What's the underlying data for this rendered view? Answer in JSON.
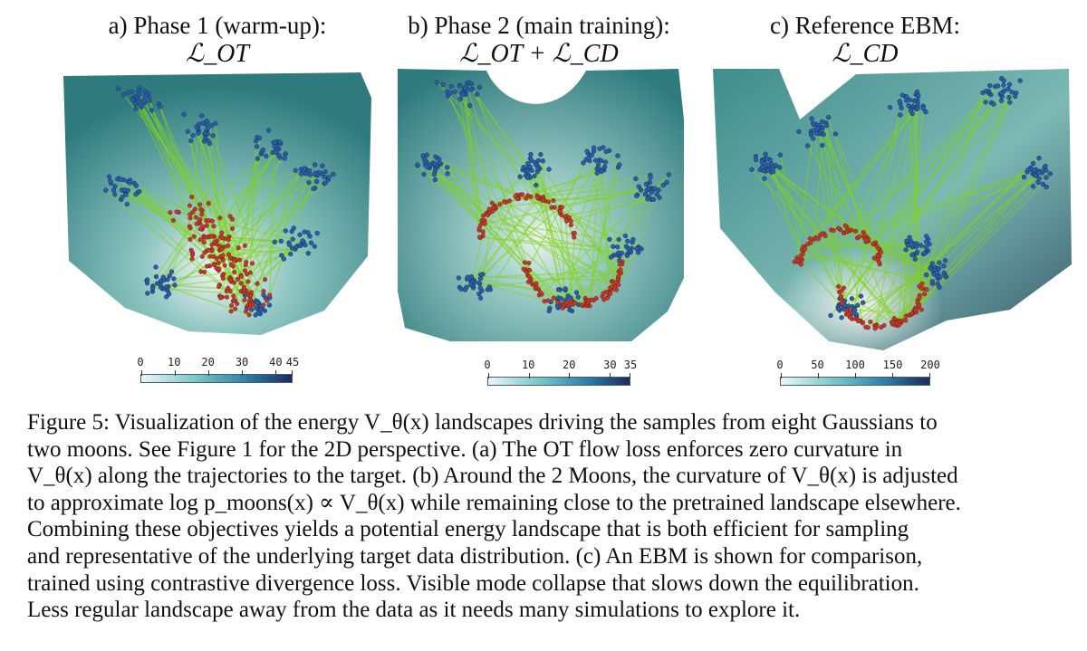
{
  "panels": [
    {
      "title": "a) Phase 1 (warm-up):",
      "formula": "ℒ_OT",
      "colorbar": {
        "ticks": [
          "0",
          "10",
          "20",
          "30",
          "40",
          "45"
        ],
        "fractions": [
          0,
          0.222,
          0.444,
          0.667,
          0.889,
          1
        ]
      }
    },
    {
      "title": "b) Phase 2 (main training):",
      "formula": "ℒ_OT + ℒ_CD",
      "colorbar": {
        "ticks": [
          "0",
          "10",
          "20",
          "30",
          "35"
        ],
        "fractions": [
          0,
          0.286,
          0.571,
          0.857,
          1
        ]
      }
    },
    {
      "title": "c) Reference EBM:",
      "formula": "ℒ_CD",
      "colorbar": {
        "ticks": [
          "0",
          "50",
          "100",
          "150",
          "200"
        ],
        "fractions": [
          0,
          0.25,
          0.5,
          0.75,
          1
        ]
      }
    }
  ],
  "caption": {
    "lines": [
      "Figure 5: Visualization of the energy V_θ(x) landscapes driving the samples from eight Gaussians to",
      "two moons. See Figure 1 for the 2D perspective. (a) The OT flow loss enforces zero curvature in",
      "V_θ(x) along the trajectories to the target. (b) Around the 2 Moons, the curvature of V_θ(x) is adjusted",
      "to approximate log p_moons(x) ∝ V_θ(x) while remaining close to the pretrained landscape elsewhere.",
      "Combining these objectives yields a potential energy landscape that is both efficient for sampling",
      "and representative of the underlying target data distribution. (c) An EBM is shown for comparison,",
      "trained using contrastive divergence loss. Visible mode collapse that slows down the equilibration.",
      "Less regular landscape away from the data as it needs many simulations to explore it."
    ]
  },
  "colors": {
    "surface": "#4f9c9b",
    "trajectory": "#7fd41a",
    "source_points": "#2c5ea8",
    "target_points": "#c0392b"
  }
}
